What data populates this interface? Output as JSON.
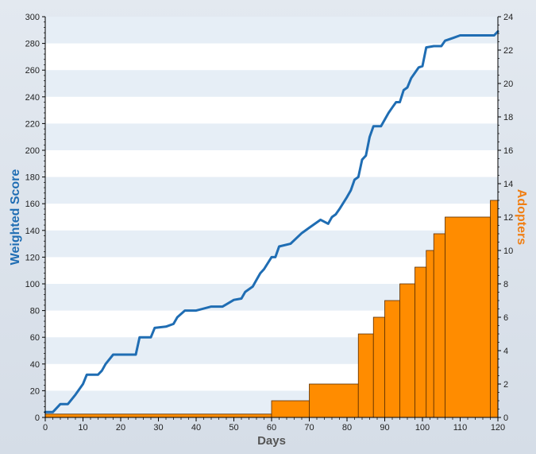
{
  "chart_data": {
    "type": "line+bar",
    "xlabel": "Days",
    "ylabel_left": "Weighted  Score",
    "ylabel_right": "Adopters",
    "xlim": [
      0,
      120
    ],
    "ylim_left": [
      0,
      300
    ],
    "ylim_right": [
      0,
      24
    ],
    "x_ticks": [
      0,
      10,
      20,
      30,
      40,
      50,
      60,
      70,
      80,
      90,
      100,
      110,
      120
    ],
    "y_left_ticks": [
      0,
      20,
      40,
      60,
      80,
      100,
      120,
      140,
      160,
      180,
      200,
      220,
      240,
      260,
      280,
      300
    ],
    "y_right_ticks": [
      0,
      2,
      4,
      6,
      8,
      10,
      12,
      14,
      16,
      18,
      20,
      22,
      24
    ],
    "grid": "horizontal alternating bands",
    "colors": {
      "line": "#1f6db3",
      "bars": "#ff8c00",
      "bar_edge": "#5a2d00",
      "band_light": "#e6eef6",
      "band_white": "#ffffff",
      "left_title": "#1f6db3",
      "right_title": "#f07f14"
    },
    "series": [
      {
        "axis": "left",
        "type": "line",
        "x": [
          0,
          2,
          4,
          6,
          8,
          10,
          11,
          12,
          14,
          15,
          16,
          18,
          19,
          20,
          22,
          24,
          25,
          28,
          29,
          32,
          34,
          35,
          37,
          40,
          44,
          47,
          50,
          52,
          53,
          55,
          56,
          57,
          58,
          60,
          61,
          62,
          65,
          68,
          70,
          73,
          75,
          76,
          77,
          78,
          80,
          81,
          82,
          83,
          84,
          85,
          86,
          87,
          89,
          91,
          92,
          93,
          94,
          95,
          96,
          97,
          98,
          99,
          100,
          101,
          103,
          105,
          106,
          108,
          110,
          115,
          119,
          120
        ],
        "y": [
          4,
          4,
          10,
          10,
          17,
          25,
          32,
          32,
          32,
          35,
          40,
          47,
          47,
          47,
          47,
          47,
          60,
          60,
          67,
          68,
          70,
          75,
          80,
          80,
          83,
          83,
          88,
          89,
          94,
          98,
          103,
          108,
          111,
          120,
          120,
          128,
          130,
          138,
          142,
          148,
          145,
          150,
          152,
          156,
          165,
          170,
          178,
          180,
          193,
          196,
          210,
          218,
          218,
          228,
          232,
          236,
          236,
          245,
          247,
          254,
          258,
          262,
          263,
          277,
          278,
          278,
          282,
          284,
          286,
          286,
          286,
          289
        ]
      },
      {
        "axis": "right",
        "type": "bar",
        "bins": [
          {
            "start": 0,
            "end": 60,
            "value": 0.2
          },
          {
            "start": 60,
            "end": 70,
            "value": 1
          },
          {
            "start": 70,
            "end": 83,
            "value": 2
          },
          {
            "start": 83,
            "end": 87,
            "value": 5
          },
          {
            "start": 87,
            "end": 90,
            "value": 6
          },
          {
            "start": 90,
            "end": 94,
            "value": 7
          },
          {
            "start": 94,
            "end": 98,
            "value": 8
          },
          {
            "start": 98,
            "end": 101,
            "value": 9
          },
          {
            "start": 101,
            "end": 103,
            "value": 10
          },
          {
            "start": 103,
            "end": 106,
            "value": 11
          },
          {
            "start": 106,
            "end": 118,
            "value": 12
          },
          {
            "start": 118,
            "end": 120,
            "value": 13
          }
        ]
      }
    ]
  }
}
